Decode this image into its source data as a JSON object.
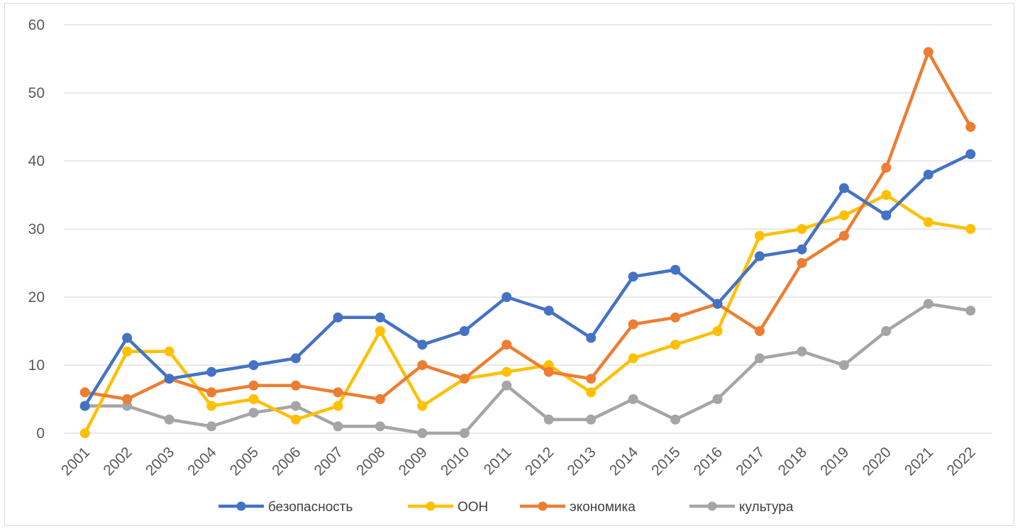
{
  "chart_data": {
    "type": "line",
    "title": "",
    "xlabel": "",
    "ylabel": "",
    "ylim": [
      0,
      60
    ],
    "yticks": [
      "0",
      "10",
      "20",
      "30",
      "40",
      "50",
      "60"
    ],
    "grid": "horizontal",
    "legend_position": "bottom",
    "categories": [
      "2001",
      "2002",
      "2003",
      "2004",
      "2005",
      "2006",
      "2007",
      "2008",
      "2009",
      "2010",
      "2011",
      "2012",
      "2013",
      "2014",
      "2015",
      "2016",
      "2017",
      "2018",
      "2019",
      "2020",
      "2021",
      "2022"
    ],
    "series": [
      {
        "name": "безопасность",
        "color": "#4472C4",
        "values": [
          4,
          14,
          8,
          9,
          10,
          11,
          17,
          17,
          13,
          15,
          20,
          18,
          14,
          23,
          24,
          19,
          26,
          27,
          36,
          32,
          38,
          41
        ]
      },
      {
        "name": "ООН",
        "color": "#FFC000",
        "values": [
          0,
          12,
          12,
          4,
          5,
          2,
          4,
          15,
          4,
          8,
          9,
          10,
          6,
          11,
          13,
          15,
          29,
          30,
          32,
          35,
          31,
          30
        ]
      },
      {
        "name": "экономика",
        "color": "#ED7D31",
        "values": [
          6,
          5,
          8,
          6,
          7,
          7,
          6,
          5,
          10,
          8,
          13,
          9,
          8,
          16,
          17,
          19,
          15,
          25,
          29,
          39,
          56,
          45
        ]
      },
      {
        "name": "культура",
        "color": "#A5A5A5",
        "values": [
          4,
          4,
          2,
          1,
          3,
          4,
          1,
          1,
          0,
          0,
          7,
          2,
          2,
          5,
          2,
          5,
          11,
          12,
          10,
          15,
          19,
          18
        ]
      }
    ]
  }
}
